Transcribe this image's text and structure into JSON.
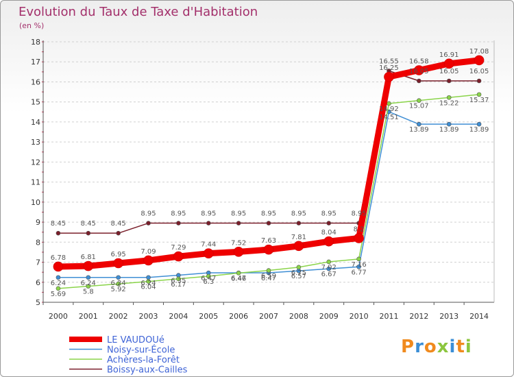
{
  "page": {
    "title": "Evolution du Taux de Taxe d'Habitation",
    "subtitle": "(en %)",
    "brand": {
      "letters": [
        "P",
        "r",
        "o",
        "x",
        "i",
        "t",
        "i"
      ],
      "colors": [
        "#f08a1e",
        "#3b8ed6",
        "#f08a1e",
        "#8cc63f",
        "#3b8ed6",
        "#f08a1e",
        "#8cc63f"
      ]
    }
  },
  "chart_data": {
    "type": "line",
    "title": "Evolution du Taux de Taxe d'Habitation",
    "ylabel": "(en %)",
    "xlabel": "",
    "x": [
      "2000",
      "2001",
      "2002",
      "2003",
      "2004",
      "2005",
      "2006",
      "2007",
      "2008",
      "2009",
      "2010",
      "2011",
      "2012",
      "2013",
      "2014"
    ],
    "ylim": [
      5,
      18
    ],
    "yticks": [
      5,
      6,
      7,
      8,
      9,
      10,
      11,
      12,
      13,
      14,
      15,
      16,
      17,
      18
    ],
    "grid": "horizontal dashed",
    "legend_position": "bottom-left",
    "series": [
      {
        "name": "LE VAUDOUé",
        "color": "#ee0000",
        "values": [
          6.78,
          6.81,
          6.95,
          7.09,
          7.29,
          7.44,
          7.52,
          7.63,
          7.81,
          8.04,
          8.2,
          16.25,
          16.58,
          16.91,
          17.08
        ],
        "labels": [
          "6.78",
          "6.81",
          "6.95",
          "7.09",
          "7.29",
          "7.44",
          "7.52",
          "7.63",
          "7.81",
          "8.04",
          "8.2",
          "16.25",
          "16.58",
          "16.91",
          "17.08"
        ]
      },
      {
        "name": "Noisy-sur-École",
        "color": "#3e8ed4",
        "values": [
          6.24,
          6.24,
          6.24,
          6.24,
          6.35,
          6.47,
          6.47,
          6.47,
          6.57,
          6.67,
          6.77,
          14.51,
          13.89,
          13.89,
          13.89
        ],
        "labels": [
          "6.24",
          "6.24",
          "6.24",
          "6.24",
          "6.35",
          "6.47",
          "6.47",
          "6.47",
          "6.57",
          "6.67",
          "6.77",
          "14.51",
          "13.89",
          "13.89",
          "13.89"
        ]
      },
      {
        "name": "Achères-la-Forêt",
        "color": "#8ad449",
        "values": [
          5.69,
          5.8,
          5.92,
          6.04,
          6.17,
          6.3,
          6.46,
          6.59,
          6.75,
          7.02,
          7.16,
          14.92,
          15.07,
          15.22,
          15.37
        ],
        "labels": [
          "5.69",
          "5.8",
          "5.92",
          "6.04",
          "6.17",
          "6.3",
          "6.46",
          "6.59",
          "6.75",
          "7.02",
          "7.16",
          "14.92",
          "15.07",
          "15.22",
          "15.37"
        ]
      },
      {
        "name": "Boissy-aux-Cailles",
        "color": "#7a1e2a",
        "values": [
          8.45,
          8.45,
          8.45,
          8.95,
          8.95,
          8.95,
          8.95,
          8.95,
          8.95,
          8.95,
          8.95,
          16.55,
          16.05,
          16.05,
          16.05
        ],
        "labels": [
          "8.45",
          "8.45",
          "8.45",
          "8.95",
          "8.95",
          "8.95",
          "8.95",
          "8.95",
          "8.95",
          "8.95",
          "8.95",
          "16.55",
          "16.05",
          "16.05",
          "16.05"
        ]
      }
    ]
  }
}
